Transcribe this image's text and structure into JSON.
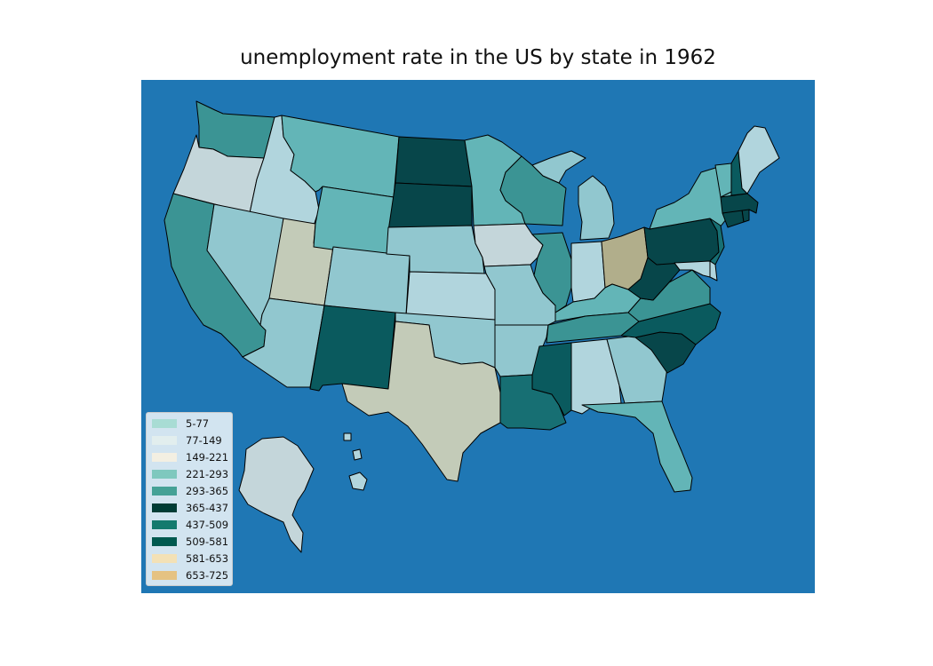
{
  "title": "unemployment rate in the US by state in 1962",
  "colors": {
    "ocean": "#1f77b4"
  },
  "legend": {
    "items": [
      {
        "label": "5-77",
        "color": "#a8dcd4"
      },
      {
        "label": "77-149",
        "color": "#e2eeee"
      },
      {
        "label": "149-221",
        "color": "#f3efe2"
      },
      {
        "label": "221-293",
        "color": "#7fc8be"
      },
      {
        "label": "293-365",
        "color": "#45a196"
      },
      {
        "label": "365-437",
        "color": "#003c35"
      },
      {
        "label": "437-509",
        "color": "#137a6e"
      },
      {
        "label": "509-581",
        "color": "#00594f"
      },
      {
        "label": "581-653",
        "color": "#f3e1b6"
      },
      {
        "label": "653-725",
        "color": "#e5c282"
      }
    ]
  },
  "states": [
    {
      "id": "WA",
      "fill": "#3b9494"
    },
    {
      "id": "OR",
      "fill": "#c4d6da"
    },
    {
      "id": "CA",
      "fill": "#3b9494"
    },
    {
      "id": "ID",
      "fill": "#b1d5dd"
    },
    {
      "id": "NV",
      "fill": "#91c7cf"
    },
    {
      "id": "UT",
      "fill": "#c3cbb8"
    },
    {
      "id": "AZ",
      "fill": "#91c7cf"
    },
    {
      "id": "MT",
      "fill": "#63b5b7"
    },
    {
      "id": "WY",
      "fill": "#63b5b7"
    },
    {
      "id": "CO",
      "fill": "#91c7cf"
    },
    {
      "id": "NM",
      "fill": "#0a5a5e"
    },
    {
      "id": "ND",
      "fill": "#07464a"
    },
    {
      "id": "SD",
      "fill": "#07464a"
    },
    {
      "id": "NE",
      "fill": "#91c7cf"
    },
    {
      "id": "KS",
      "fill": "#b1d5dd"
    },
    {
      "id": "OK",
      "fill": "#91c7cf"
    },
    {
      "id": "TX",
      "fill": "#c3cbb8"
    },
    {
      "id": "MN",
      "fill": "#63b5b7"
    },
    {
      "id": "IA",
      "fill": "#c4d6da"
    },
    {
      "id": "MO",
      "fill": "#91c7cf"
    },
    {
      "id": "AR",
      "fill": "#91c7cf"
    },
    {
      "id": "LA",
      "fill": "#176f73"
    },
    {
      "id": "WI",
      "fill": "#3b9494"
    },
    {
      "id": "IL",
      "fill": "#3b9494"
    },
    {
      "id": "MI",
      "fill": "#91c7cf"
    },
    {
      "id": "IN",
      "fill": "#b1d5dd"
    },
    {
      "id": "OH",
      "fill": "#b1ae8b"
    },
    {
      "id": "KY",
      "fill": "#63b5b7"
    },
    {
      "id": "TN",
      "fill": "#3b9494"
    },
    {
      "id": "MS",
      "fill": "#0a5a5e"
    },
    {
      "id": "AL",
      "fill": "#b1d5dd"
    },
    {
      "id": "GA",
      "fill": "#91c7cf"
    },
    {
      "id": "FL",
      "fill": "#63b5b7"
    },
    {
      "id": "SC",
      "fill": "#07464a"
    },
    {
      "id": "NC",
      "fill": "#0a5a5e"
    },
    {
      "id": "VA",
      "fill": "#3b9494"
    },
    {
      "id": "WV",
      "fill": "#07464a"
    },
    {
      "id": "PA",
      "fill": "#07464a"
    },
    {
      "id": "NY",
      "fill": "#63b5b7"
    },
    {
      "id": "NJ",
      "fill": "#176f73"
    },
    {
      "id": "DE",
      "fill": "#b1d5dd"
    },
    {
      "id": "MD",
      "fill": "#b1d5dd"
    },
    {
      "id": "CT",
      "fill": "#07464a"
    },
    {
      "id": "RI",
      "fill": "#07464a"
    },
    {
      "id": "MA",
      "fill": "#07464a"
    },
    {
      "id": "VT",
      "fill": "#63b5b7"
    },
    {
      "id": "NH",
      "fill": "#0a5a5e"
    },
    {
      "id": "ME",
      "fill": "#b1d5dd"
    },
    {
      "id": "AK",
      "fill": "#c4d6da"
    },
    {
      "id": "HI",
      "fill": "#b1d5dd"
    }
  ]
}
